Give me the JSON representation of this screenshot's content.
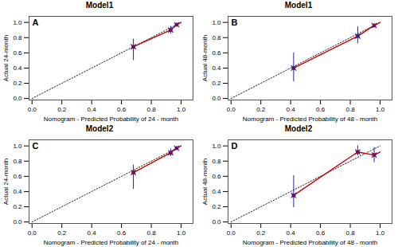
{
  "chart_data": [
    {
      "type": "line",
      "title": "Model1",
      "annotations": [
        {
          "text": "A"
        }
      ],
      "xlabel": "Nomogram - Predicted Probability of 24 - month",
      "ylabel": "Actual 24-month",
      "xlim": [
        -0.02,
        1.08
      ],
      "ylim": [
        -0.02,
        1.08
      ],
      "xticks": [
        {
          "value": 0.0,
          "label": "0.0"
        },
        0.2,
        0.4,
        0.6,
        0.8,
        {
          "value": 1.0,
          "label": "1.0"
        }
      ],
      "yticks": [
        {
          "value": 0.0,
          "label": "0.0"
        },
        0.2,
        0.4,
        0.6,
        0.8,
        {
          "value": 1.0,
          "label": "1.0"
        }
      ],
      "grid": false,
      "series": [
        {
          "type": "line",
          "line_style": "dotted",
          "color": "#222222",
          "x": [
            0.0,
            1.0
          ],
          "values": [
            0.0,
            1.0
          ]
        },
        {
          "type": "line",
          "line_style": "solid",
          "color": "#cc0000",
          "x": [
            0.68,
            0.93,
            0.97,
            1.0
          ],
          "values": [
            0.68,
            0.9,
            0.97,
            1.0
          ]
        },
        {
          "type": "scatter",
          "marker": "circle",
          "color": "#cc0000",
          "x": [
            0.68,
            0.93,
            0.97
          ],
          "values": [
            0.68,
            0.9,
            0.97
          ]
        },
        {
          "type": "scatter",
          "marker": "x",
          "color": "#2222aa",
          "x": [
            0.68,
            0.93,
            0.97
          ],
          "values": [
            0.68,
            0.9,
            0.97
          ],
          "yerr_low": [
            0.18,
            0.05,
            0.02
          ],
          "yerr_high": [
            0.1,
            0.05,
            0.02
          ]
        }
      ]
    },
    {
      "type": "line",
      "title": "Model1",
      "annotations": [
        {
          "text": "B"
        }
      ],
      "xlabel": "Nomogram - Predicted Probability of 48 - month",
      "ylabel": "Actual 48-month",
      "xlim": [
        -0.02,
        1.08
      ],
      "ylim": [
        -0.02,
        1.08
      ],
      "xticks": [
        {
          "value": 0.0,
          "label": "0.0"
        },
        0.2,
        0.4,
        0.6,
        0.8,
        {
          "value": 1.0,
          "label": "1.0"
        }
      ],
      "yticks": [
        {
          "value": 0.0,
          "label": "0.0"
        },
        0.2,
        0.4,
        0.6,
        0.8,
        {
          "value": 1.0,
          "label": "1.0"
        }
      ],
      "grid": false,
      "series": [
        {
          "type": "line",
          "line_style": "dotted",
          "color": "#222222",
          "x": [
            0.0,
            1.0
          ],
          "values": [
            0.0,
            1.0
          ]
        },
        {
          "type": "line",
          "line_style": "solid",
          "color": "#cc0000",
          "x": [
            0.42,
            0.85,
            0.96,
            1.0
          ],
          "values": [
            0.4,
            0.82,
            0.96,
            1.0
          ]
        },
        {
          "type": "scatter",
          "marker": "circle",
          "color": "#cc0000",
          "x": [
            0.42,
            0.85,
            0.96
          ],
          "values": [
            0.4,
            0.82,
            0.96
          ]
        },
        {
          "type": "scatter",
          "marker": "x",
          "color": "#2222aa",
          "x": [
            0.42,
            0.85,
            0.96
          ],
          "values": [
            0.4,
            0.82,
            0.96
          ],
          "yerr_low": [
            0.18,
            0.1,
            0.03
          ],
          "yerr_high": [
            0.2,
            0.12,
            0.02
          ]
        }
      ]
    },
    {
      "type": "line",
      "title": "Model2",
      "annotations": [
        {
          "text": "C"
        }
      ],
      "xlabel": "Nomogram - Predicted Probability of 24 - month",
      "ylabel": "Actual 24-month",
      "xlim": [
        -0.02,
        1.08
      ],
      "ylim": [
        -0.02,
        1.08
      ],
      "xticks": [
        {
          "value": 0.0,
          "label": "0.0"
        },
        0.2,
        0.4,
        0.6,
        0.8,
        {
          "value": 1.0,
          "label": "1.0"
        }
      ],
      "yticks": [
        {
          "value": 0.0,
          "label": "0.0"
        },
        0.2,
        0.4,
        0.6,
        0.8,
        {
          "value": 1.0,
          "label": "1.0"
        }
      ],
      "grid": false,
      "series": [
        {
          "type": "line",
          "line_style": "dotted",
          "color": "#222222",
          "x": [
            0.0,
            1.0
          ],
          "values": [
            0.0,
            1.0
          ]
        },
        {
          "type": "line",
          "line_style": "solid",
          "color": "#cc0000",
          "x": [
            0.68,
            0.93,
            0.97,
            1.0
          ],
          "values": [
            0.65,
            0.91,
            0.97,
            1.0
          ]
        },
        {
          "type": "scatter",
          "marker": "circle",
          "color": "#cc0000",
          "x": [
            0.68,
            0.93,
            0.97
          ],
          "values": [
            0.65,
            0.91,
            0.97
          ]
        },
        {
          "type": "scatter",
          "marker": "x",
          "color": "#2222aa",
          "x": [
            0.68,
            0.93,
            0.97
          ],
          "values": [
            0.65,
            0.91,
            0.97
          ],
          "yerr_low": [
            0.22,
            0.05,
            0.02
          ],
          "yerr_high": [
            0.1,
            0.05,
            0.02
          ]
        }
      ]
    },
    {
      "type": "line",
      "title": "Model2",
      "annotations": [
        {
          "text": "D"
        }
      ],
      "xlabel": "Nomogram - Predicted Probability of 48 - month",
      "ylabel": "Actual 48-month",
      "xlim": [
        -0.02,
        1.08
      ],
      "ylim": [
        -0.02,
        1.08
      ],
      "xticks": [
        {
          "value": 0.0,
          "label": "0.0"
        },
        0.2,
        0.4,
        0.6,
        0.8,
        {
          "value": 1.0,
          "label": "1.0"
        }
      ],
      "yticks": [
        {
          "value": 0.0,
          "label": "0.0"
        },
        0.2,
        0.4,
        0.6,
        0.8,
        {
          "value": 1.0,
          "label": "1.0"
        }
      ],
      "grid": false,
      "series": [
        {
          "type": "line",
          "line_style": "dotted",
          "color": "#222222",
          "x": [
            0.0,
            1.0
          ],
          "values": [
            0.0,
            1.0
          ]
        },
        {
          "type": "line",
          "line_style": "solid",
          "color": "#cc0000",
          "x": [
            0.42,
            0.85,
            0.96,
            1.0
          ],
          "values": [
            0.35,
            0.92,
            0.88,
            0.92
          ]
        },
        {
          "type": "scatter",
          "marker": "circle",
          "color": "#cc0000",
          "x": [
            0.42,
            0.85,
            0.96
          ],
          "values": [
            0.35,
            0.92,
            0.88
          ]
        },
        {
          "type": "scatter",
          "marker": "x",
          "color": "#2222aa",
          "x": [
            0.42,
            0.85,
            0.96
          ],
          "values": [
            0.35,
            0.92,
            0.88
          ],
          "yerr_low": [
            0.16,
            0.05,
            0.1
          ],
          "yerr_high": [
            0.26,
            0.08,
            0.1
          ]
        }
      ]
    }
  ]
}
